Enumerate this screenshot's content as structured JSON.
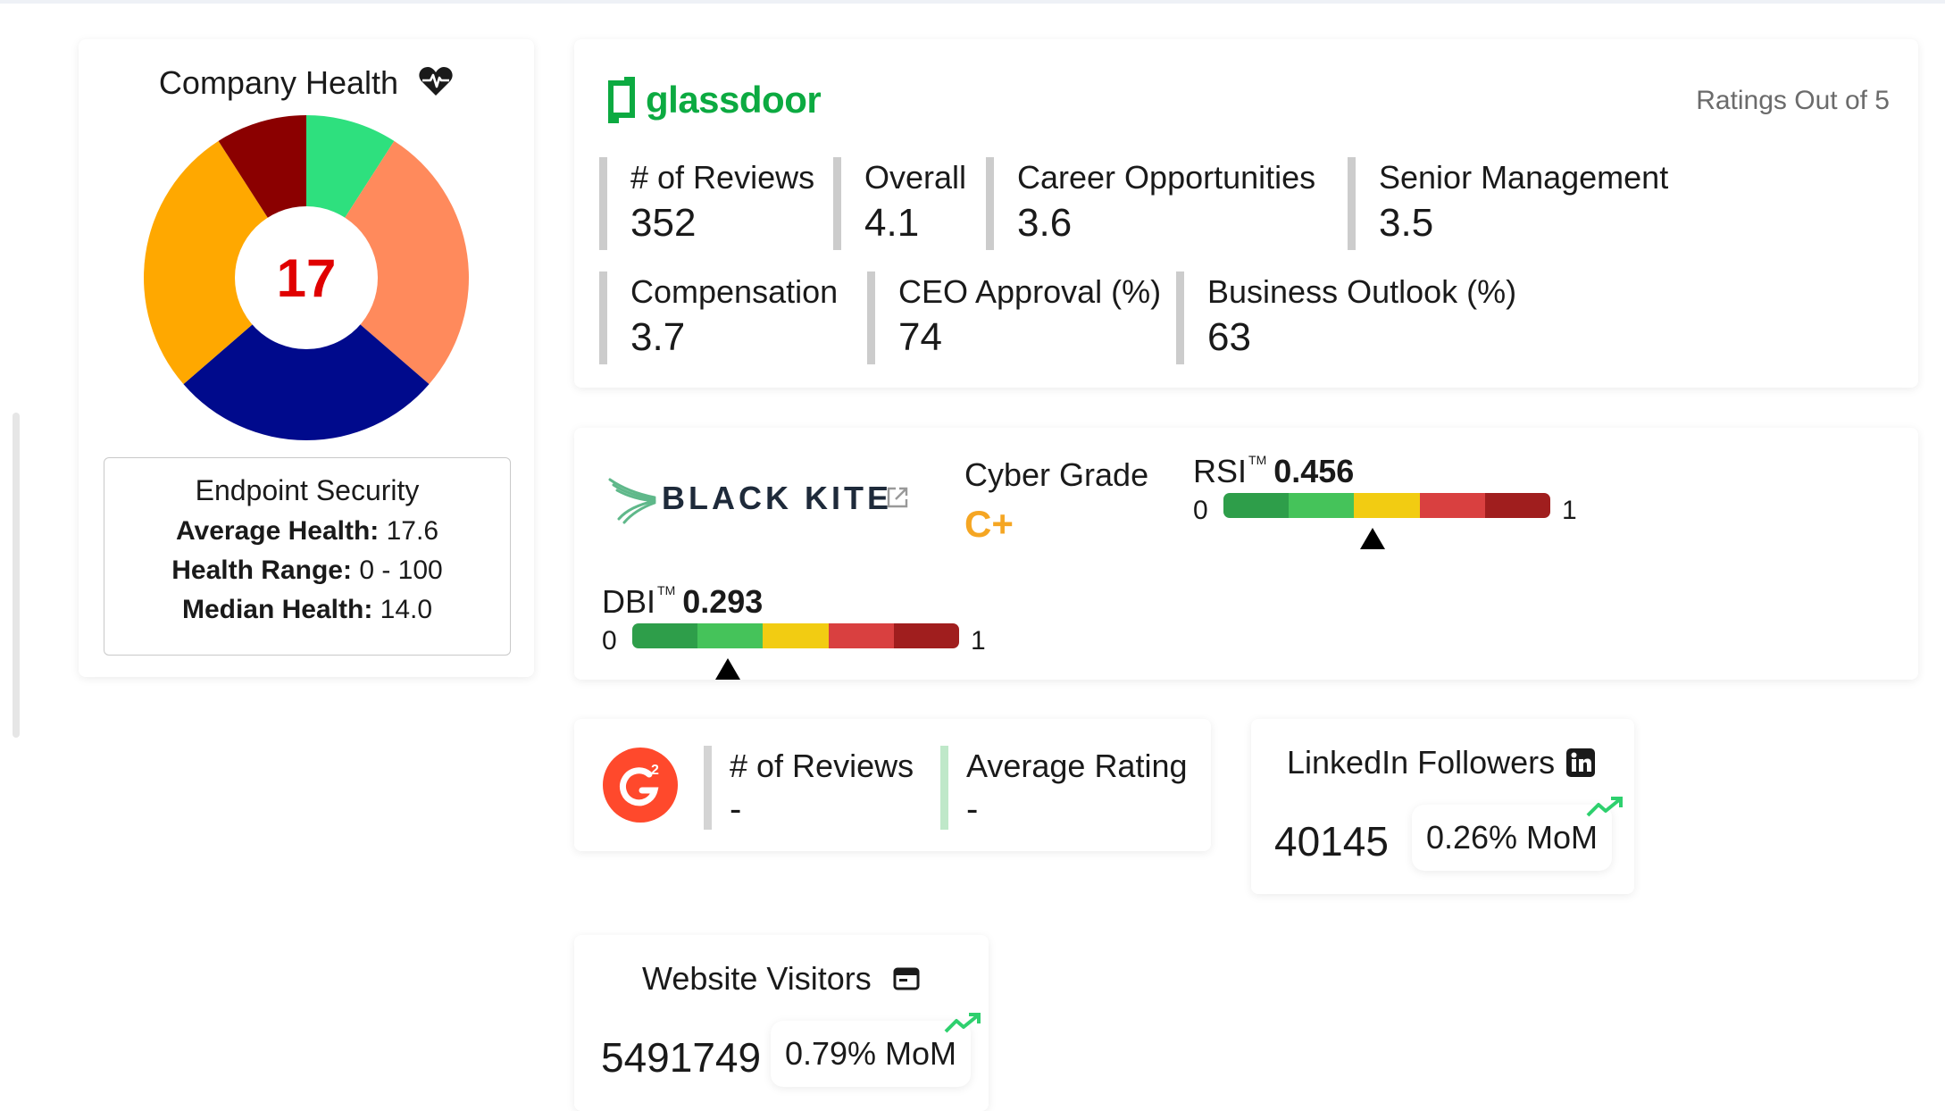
{
  "company_health": {
    "title": "Company Health",
    "title_icon": "heart-pulse-icon",
    "score": "17",
    "score_color": "#e00000",
    "segments": [
      {
        "value": 0.5,
        "color": "#2ee07e"
      },
      {
        "value": 1.5,
        "color": "#ff8a5c"
      },
      {
        "value": 1.5,
        "color": "#000a8c"
      },
      {
        "value": 1.5,
        "color": "#ffa800"
      },
      {
        "value": 0.5,
        "color": "#8b0000"
      }
    ],
    "endpoint": {
      "title": "Endpoint Security",
      "avg_label": "Average Health:",
      "avg_value": "17.6",
      "range_label": "Health Range:",
      "range_value": "0 - 100",
      "median_label": "Median Health:",
      "median_value": "14.0"
    }
  },
  "glassdoor": {
    "logo_text": "glassdoor",
    "brand_color": "#0caa41",
    "ratings_note": "Ratings Out of 5",
    "metrics": [
      {
        "label": "# of Reviews",
        "value": "352",
        "color": "#cfcfcf"
      },
      {
        "label": "Overall",
        "value": "4.1",
        "color": "#b8e6c4"
      },
      {
        "label": "Career Opportunities",
        "value": "3.6",
        "color": "#b9ccf2"
      },
      {
        "label": "Senior Management",
        "value": "3.5",
        "color": "#fbe3b8"
      },
      {
        "label": "Compensation",
        "value": "3.7",
        "color": "#cfcfcf"
      },
      {
        "label": "CEO Approval (%)",
        "value": "74",
        "color": "#f5b7c9"
      },
      {
        "label": "Business Outlook (%)",
        "value": "63",
        "color": "#bdeaf0"
      }
    ]
  },
  "blackkite": {
    "logo_text": "BLACK KITE",
    "cyber_grade_label": "Cyber Grade",
    "cyber_grade_value": "C+",
    "gauge_colors": [
      "#2e9e4a",
      "#45c35a",
      "#f2cc12",
      "#d94040",
      "#a01e1e"
    ],
    "rsi": {
      "label": "RSI",
      "tm": "TM",
      "value": "0.456",
      "fraction": 0.456,
      "min": "0",
      "max": "1"
    },
    "dbi": {
      "label": "DBI",
      "tm": "TM",
      "value": "0.293",
      "fraction": 0.293,
      "min": "0",
      "max": "1"
    }
  },
  "g2": {
    "reviews_label": "# of Reviews",
    "reviews_value": "-",
    "rating_label": "Average Rating",
    "rating_value": "-"
  },
  "linkedin": {
    "title": "LinkedIn Followers",
    "icon": "linkedin-icon",
    "count": "40145",
    "mom": "0.26% MoM"
  },
  "website": {
    "title": "Website Visitors",
    "icon": "browser-window-icon",
    "count": "5491749",
    "mom": "0.79% MoM"
  }
}
